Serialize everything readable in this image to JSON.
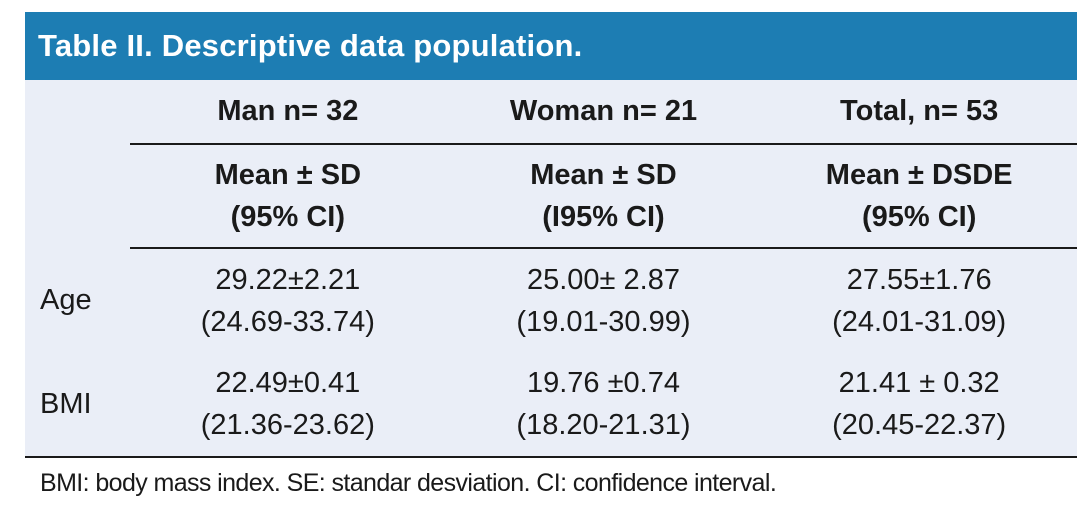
{
  "title": "Table II. Descriptive data population.",
  "colors": {
    "title_bar_bg": "#1d7db3",
    "title_text": "#ffffff",
    "table_bg": "#eaeef7",
    "rule_color": "#1a1a1a",
    "text": "#1a1a1a"
  },
  "table": {
    "column_headers": [
      "Man n= 32",
      "Woman n= 21",
      "Total, n= 53"
    ],
    "sub_headers": [
      {
        "line1": "Mean ± SD",
        "line2": "(95% CI)"
      },
      {
        "line1": "Mean ± SD",
        "line2": "(I95% CI)"
      },
      {
        "line1": "Mean ± DSDE",
        "line2": "(95% CI)"
      }
    ],
    "rows": [
      {
        "label": "Age",
        "cells": [
          {
            "value": "29.22±2.21",
            "ci": "(24.69-33.74)"
          },
          {
            "value": "25.00± 2.87",
            "ci": "(19.01-30.99)"
          },
          {
            "value": "27.55±1.76",
            "ci": "(24.01-31.09)"
          }
        ]
      },
      {
        "label": "BMI",
        "cells": [
          {
            "value": "22.49±0.41",
            "ci": "(21.36-23.62)"
          },
          {
            "value": "19.76 ±0.74",
            "ci": "(18.20-21.31)"
          },
          {
            "value": "21.41 ± 0.32",
            "ci": "(20.45-22.37)"
          }
        ]
      }
    ]
  },
  "footnote": "BMI: body mass index. SE: standar desviation. CI: confidence interval."
}
